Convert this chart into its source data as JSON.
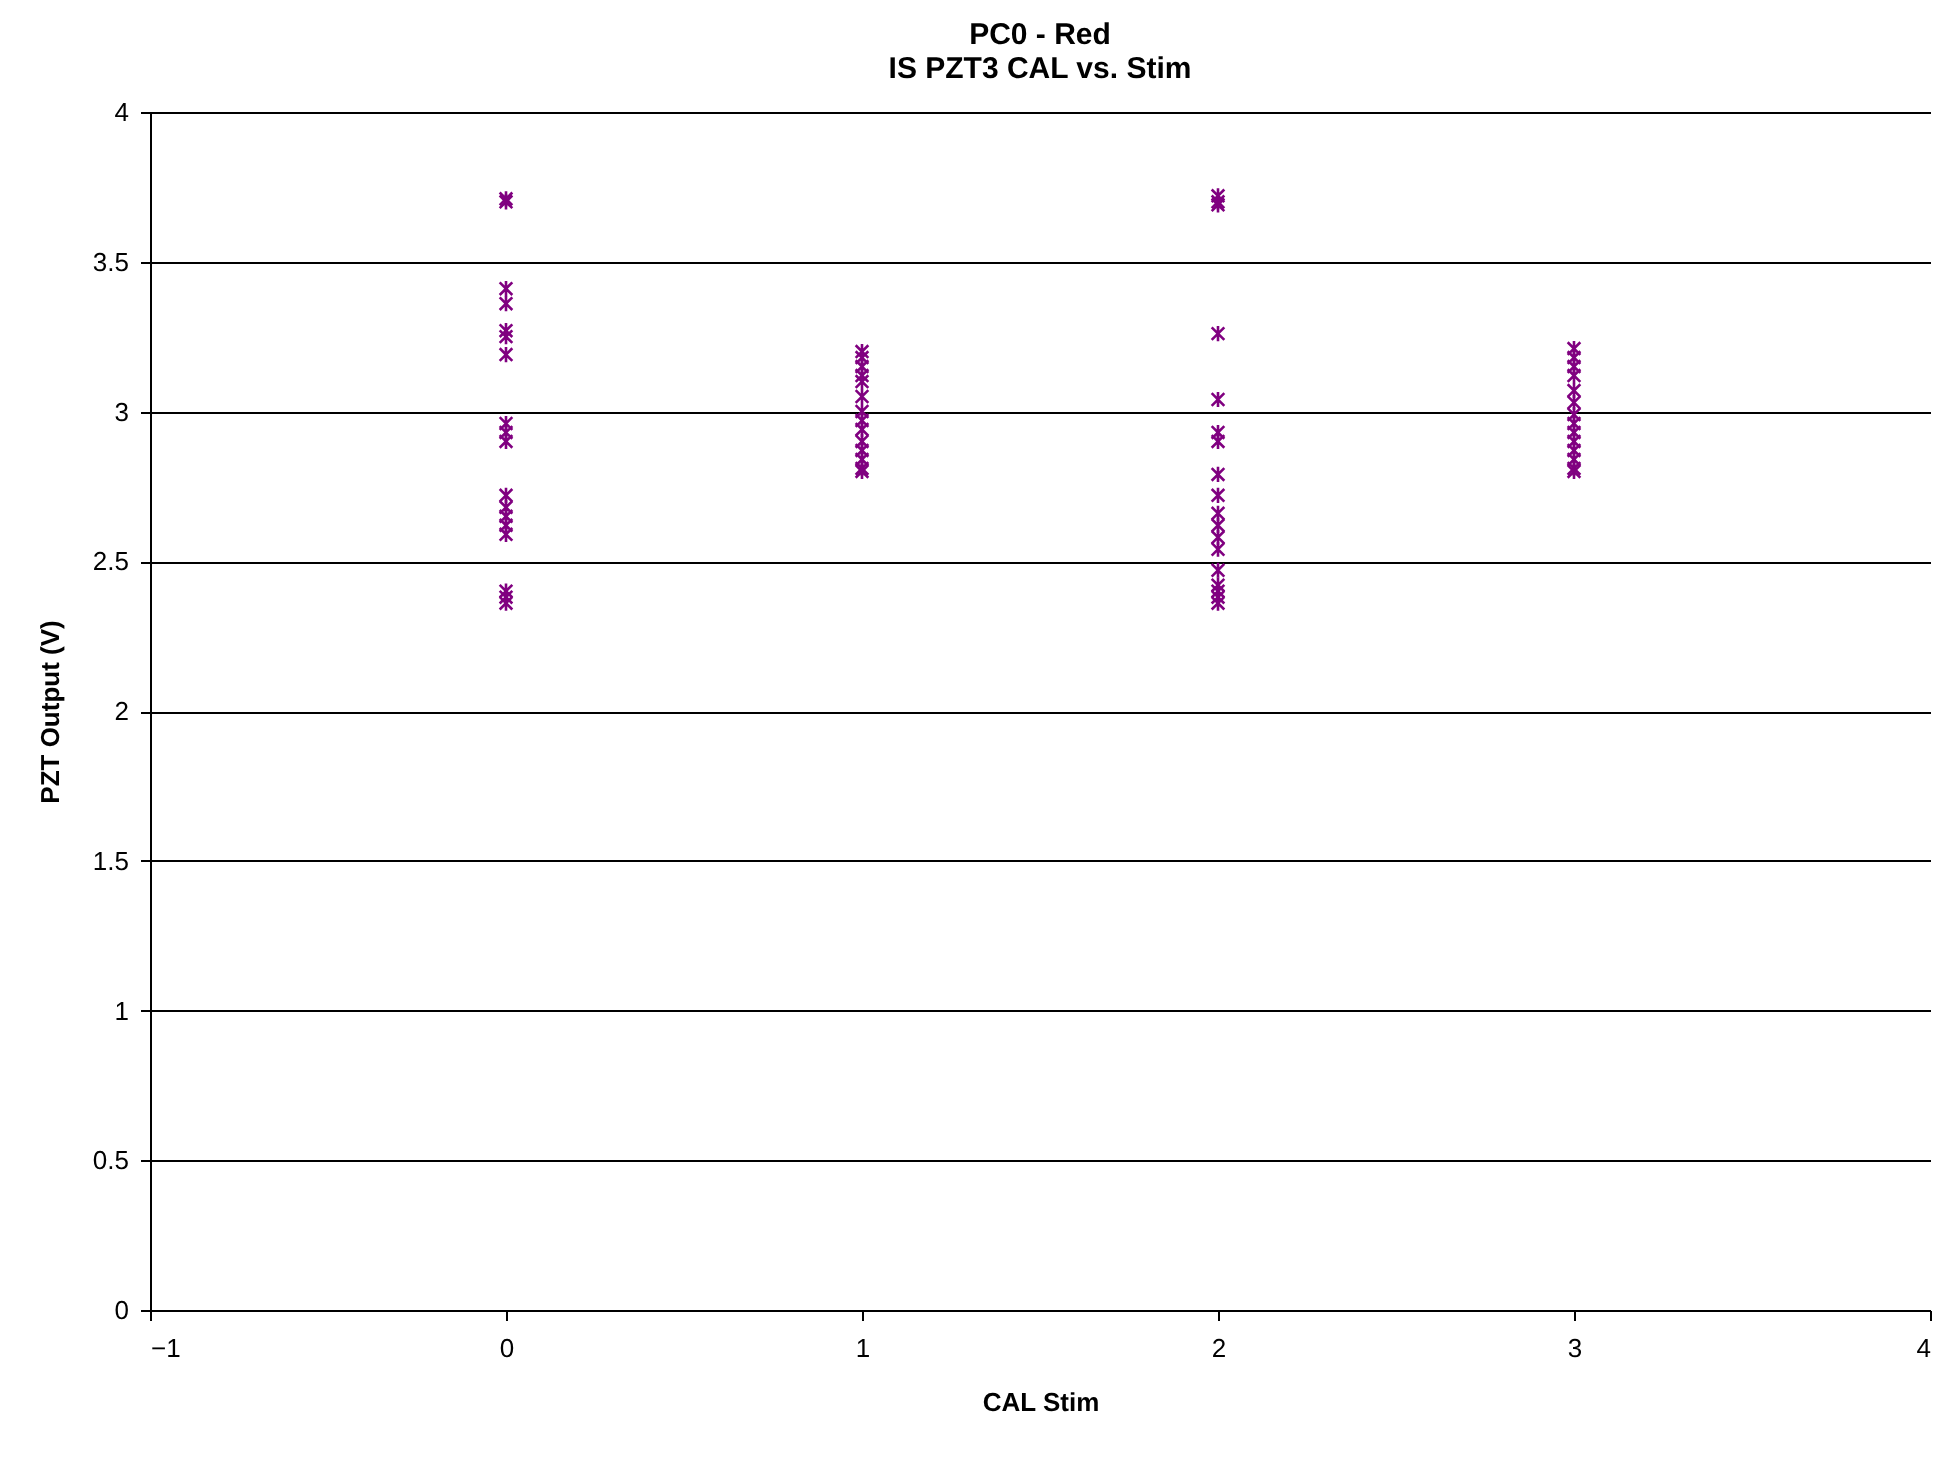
{
  "chart_data": {
    "type": "scatter",
    "title": "PC0 - Red",
    "subtitle": "IS PZT3 CAL vs. Stim",
    "xlabel": "CAL Stim",
    "ylabel": "PZT Output (V)",
    "series": [
      {
        "color": "#800080",
        "x": [
          0,
          0,
          0,
          0,
          0,
          0,
          0,
          0,
          0,
          0,
          0,
          0,
          0,
          0,
          0,
          0,
          0,
          0,
          1,
          1,
          1,
          1,
          1,
          1,
          1,
          1,
          1,
          1,
          1,
          1,
          1,
          1,
          2,
          2,
          2,
          2,
          2,
          2,
          2,
          2,
          2,
          2,
          2,
          2,
          2,
          2,
          2,
          2,
          2,
          2,
          3,
          3,
          3,
          3,
          3,
          3,
          3,
          3,
          3,
          3,
          3,
          3,
          3,
          3
        ],
        "values": [
          3.71,
          3.7,
          3.41,
          3.36,
          3.27,
          3.25,
          3.19,
          2.96,
          2.93,
          2.9,
          2.72,
          2.68,
          2.65,
          2.62,
          2.59,
          2.4,
          2.38,
          2.36,
          3.2,
          3.18,
          3.15,
          3.12,
          3.1,
          3.05,
          3.0,
          2.97,
          2.94,
          2.9,
          2.87,
          2.84,
          2.81,
          2.8,
          3.72,
          3.7,
          3.69,
          3.26,
          3.04,
          2.93,
          2.9,
          2.79,
          2.72,
          2.66,
          2.62,
          2.58,
          2.54,
          2.47,
          2.42,
          2.4,
          2.38,
          2.36,
          3.21,
          3.18,
          3.15,
          3.12,
          3.07,
          3.03,
          2.99,
          2.96,
          2.93,
          2.9,
          2.87,
          2.84,
          2.81,
          2.8
        ]
      }
    ],
    "xlim": [
      -1,
      4
    ],
    "xticks": [
      -1,
      0,
      1,
      2,
      3,
      4
    ],
    "ylim": [
      0,
      4
    ],
    "yticks": [
      0,
      0.5,
      1,
      1.5,
      2,
      2.5,
      3,
      3.5,
      4
    ],
    "grid": "y",
    "legend": false,
    "marker": "cross"
  }
}
